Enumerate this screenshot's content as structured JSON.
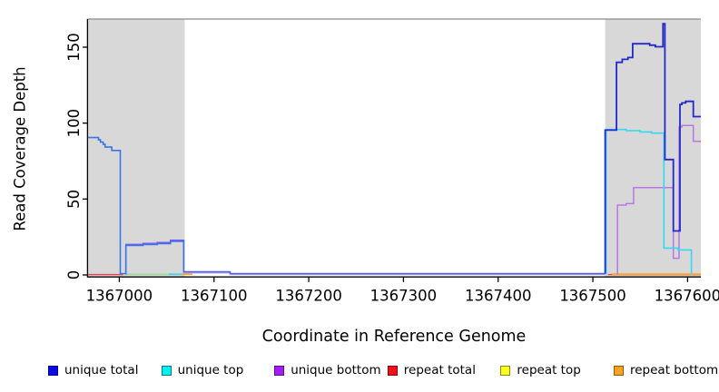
{
  "chart_data": {
    "type": "line",
    "title": "",
    "xlabel": "Coordinate in Reference Genome",
    "ylabel": "Read Coverage Depth",
    "xlim": [
      1366967,
      1367614
    ],
    "ylim": [
      0,
      168
    ],
    "x_ticks": [
      1367000,
      1367100,
      1367200,
      1367300,
      1367400,
      1367500,
      1367600
    ],
    "y_ticks": [
      0,
      50,
      100,
      150
    ],
    "grid": false,
    "shaded_regions": [
      {
        "from": 1366967,
        "to": 1367069,
        "color": "#d8d8d8"
      },
      {
        "from": 1367513,
        "to": 1367614,
        "color": "#d8d8d8"
      }
    ],
    "top_border_color": "#8a8a8a",
    "series": [
      {
        "name": "repeat total",
        "paths": [
          {
            "color": "#ef4050",
            "w": 1.4,
            "pts": [
              [
                1366967,
                0.25
              ],
              [
                1367004,
                0.25
              ]
            ]
          },
          {
            "color": "#ef4050",
            "w": 1.4,
            "pts": [
              [
                1367516,
                0.25
              ],
              [
                1367614,
                0.25
              ]
            ]
          }
        ]
      },
      {
        "name": "repeat top",
        "paths": [
          {
            "color": "#8ee08e",
            "w": 1.4,
            "pts": [
              [
                1367006,
                0.5
              ],
              [
                1367052,
                0.5
              ]
            ]
          }
        ]
      },
      {
        "name": "repeat bottom",
        "paths": [
          {
            "color": "#ffa51e",
            "w": 1.8,
            "pts": [
              [
                1367066,
                0.5
              ],
              [
                1367077,
                0.5
              ]
            ]
          },
          {
            "color": "#ffa51e",
            "w": 1.8,
            "pts": [
              [
                1367520,
                0.55
              ],
              [
                1367614,
                0.55
              ]
            ]
          }
        ]
      },
      {
        "name": "unique bottom",
        "paths": [
          {
            "color": "#7e58e8",
            "w": 1.5,
            "pts": [
              [
                1367007,
                0.3
              ],
              [
                1367007,
                20.1
              ],
              [
                1367025,
                20.1
              ],
              [
                1367025,
                20.8
              ],
              [
                1367040,
                20.8
              ],
              [
                1367040,
                21.4
              ],
              [
                1367054,
                21.4
              ],
              [
                1367054,
                22.8
              ],
              [
                1367068,
                22.8
              ],
              [
                1367068,
                1.4
              ]
            ]
          },
          {
            "color": "#ab9bef",
            "w": 1.4,
            "pts": [
              [
                1367068,
                1.4
              ],
              [
                1367117,
                1.4
              ],
              [
                1367117,
                0.35
              ],
              [
                1367513,
                0.35
              ]
            ]
          },
          {
            "color": "#b677e6",
            "w": 1.5,
            "pts": [
              [
                1367526,
                0.35
              ],
              [
                1367526,
                46
              ],
              [
                1367535,
                46
              ],
              [
                1367535,
                47
              ],
              [
                1367543,
                47
              ],
              [
                1367543,
                57.5
              ],
              [
                1367585,
                57.5
              ],
              [
                1367585,
                11
              ],
              [
                1367591,
                11
              ],
              [
                1367591,
                97.4
              ],
              [
                1367594,
                97.4
              ],
              [
                1367594,
                98.4
              ],
              [
                1367606,
                98.4
              ],
              [
                1367606,
                88
              ],
              [
                1367614,
                88
              ]
            ]
          }
        ]
      },
      {
        "name": "unique top",
        "paths": [
          {
            "color": "#35d8f2",
            "w": 1.6,
            "pts": [
              [
                1367052,
                0.5
              ],
              [
                1367066,
                0.5
              ]
            ]
          },
          {
            "color": "#35d8f2",
            "w": 1.6,
            "pts": [
              [
                1367514,
                0.4
              ],
              [
                1367514,
                95.8
              ],
              [
                1367535,
                95.8
              ],
              [
                1367535,
                95
              ],
              [
                1367550,
                95
              ],
              [
                1367550,
                94.2
              ],
              [
                1367562,
                94.2
              ],
              [
                1367562,
                93.4
              ],
              [
                1367575,
                93.4
              ],
              [
                1367575,
                17.7
              ],
              [
                1367590,
                17.7
              ],
              [
                1367590,
                16.5
              ],
              [
                1367604,
                16.5
              ],
              [
                1367604,
                0.4
              ]
            ]
          }
        ]
      },
      {
        "name": "unique total",
        "paths": [
          {
            "color": "#3c74e8",
            "w": 1.6,
            "pts": [
              [
                1366967,
                90.5
              ],
              [
                1366978,
                90.5
              ],
              [
                1366978,
                89
              ],
              [
                1366980,
                89
              ],
              [
                1366980,
                87.5
              ],
              [
                1366983,
                87.5
              ],
              [
                1366983,
                86
              ],
              [
                1366985,
                86
              ],
              [
                1366985,
                84.2
              ],
              [
                1366992,
                84.2
              ],
              [
                1366992,
                82
              ],
              [
                1367001,
                82
              ],
              [
                1367001,
                0.9
              ],
              [
                1367007,
                0.9
              ],
              [
                1367007,
                19.5
              ],
              [
                1367025,
                19.5
              ],
              [
                1367025,
                20.1
              ],
              [
                1367040,
                20.1
              ],
              [
                1367040,
                20.7
              ],
              [
                1367054,
                20.7
              ],
              [
                1367054,
                22.1
              ],
              [
                1367068,
                22.1
              ],
              [
                1367068,
                2.1
              ]
            ]
          },
          {
            "color": "#5560e2",
            "w": 1.5,
            "pts": [
              [
                1367068,
                2.1
              ],
              [
                1367117,
                2.1
              ],
              [
                1367117,
                0.9
              ],
              [
                1367513,
                0.9
              ]
            ]
          },
          {
            "color": "#2328cd",
            "w": 1.8,
            "pts": [
              [
                1367513,
                0.9
              ],
              [
                1367513,
                95.4
              ],
              [
                1367525,
                95.4
              ],
              [
                1367525,
                140
              ],
              [
                1367531,
                140
              ],
              [
                1367531,
                142
              ],
              [
                1367537,
                142
              ],
              [
                1367537,
                143.2
              ],
              [
                1367542,
                143.2
              ],
              [
                1367542,
                152.3
              ],
              [
                1367560,
                152.3
              ],
              [
                1367560,
                151.3
              ],
              [
                1367566,
                151.3
              ],
              [
                1367566,
                150.3
              ],
              [
                1367574,
                150.3
              ],
              [
                1367574,
                165.5
              ],
              [
                1367576,
                165.5
              ],
              [
                1367576,
                76
              ],
              [
                1367585,
                76
              ],
              [
                1367585,
                29
              ],
              [
                1367592,
                29
              ],
              [
                1367592,
                112.3
              ],
              [
                1367594,
                112.3
              ],
              [
                1367594,
                113.3
              ],
              [
                1367598,
                113.3
              ],
              [
                1367598,
                114.3
              ],
              [
                1367606,
                114.3
              ],
              [
                1367606,
                104.3
              ],
              [
                1367614,
                104.3
              ]
            ]
          }
        ]
      }
    ],
    "legend_position": "bottom"
  },
  "legend": [
    {
      "label": "unique total",
      "fill": "#0a0ae6",
      "border": "#000090"
    },
    {
      "label": "unique top",
      "fill": "#00f0f0",
      "border": "#007a8a"
    },
    {
      "label": "unique bottom",
      "fill": "#a21fef",
      "border": "#5a0e8c"
    },
    {
      "label": "repeat total",
      "fill": "#f2101f",
      "border": "#8c0000"
    },
    {
      "label": "repeat top",
      "fill": "#fcfc20",
      "border": "#8c8c00"
    },
    {
      "label": "repeat bottom",
      "fill": "#fca220",
      "border": "#8c5a00"
    }
  ]
}
